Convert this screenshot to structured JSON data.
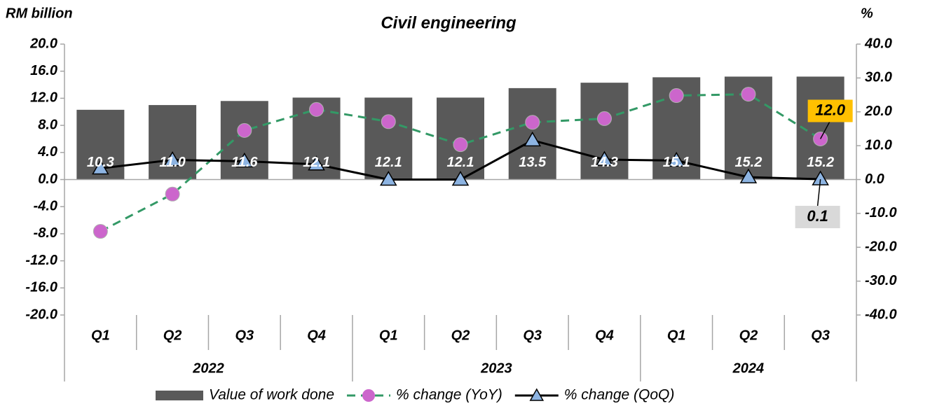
{
  "chart_data": {
    "type": "bar_line",
    "title": "Civil engineering",
    "y_label": "RM billion",
    "y2_label": "%",
    "categories": [
      "Q1",
      "Q2",
      "Q3",
      "Q4",
      "Q1",
      "Q2",
      "Q3",
      "Q4",
      "Q1",
      "Q2",
      "Q3"
    ],
    "years": [
      "2022",
      "2022",
      "2022",
      "2022",
      "2023",
      "2023",
      "2023",
      "2023",
      "2024",
      "2024",
      "2024"
    ],
    "ylim": [
      -20,
      20
    ],
    "yticks": [
      {
        "value": -20,
        "label": "-20.0"
      },
      {
        "value": -16,
        "label": "-16.0"
      },
      {
        "value": -12,
        "label": "-12.0"
      },
      {
        "value": -8,
        "label": "-8.0"
      },
      {
        "value": -4,
        "label": "-4.0"
      },
      {
        "value": 0,
        "label": "0.0"
      },
      {
        "value": 4,
        "label": "4.0"
      },
      {
        "value": 8,
        "label": "8.0"
      },
      {
        "value": 12,
        "label": "12.0"
      },
      {
        "value": 16,
        "label": "16.0"
      },
      {
        "value": 20,
        "label": "20.0"
      }
    ],
    "y2lim": [
      -40,
      40
    ],
    "y2ticks": [
      {
        "value": -40,
        "label": "-40.0"
      },
      {
        "value": -30,
        "label": "-30.0"
      },
      {
        "value": -20,
        "label": "-20.0"
      },
      {
        "value": -10,
        "label": "-10.0"
      },
      {
        "value": 0,
        "label": "0.0"
      },
      {
        "value": 10,
        "label": "10.0"
      },
      {
        "value": 20,
        "label": "20.0"
      },
      {
        "value": 30,
        "label": "30.0"
      },
      {
        "value": 40,
        "label": "40.0"
      }
    ],
    "series": [
      {
        "name": "Value of  work done",
        "type": "bar",
        "color": "#595959",
        "values": [
          10.3,
          11.0,
          11.6,
          12.1,
          12.1,
          12.1,
          13.5,
          14.3,
          15.1,
          15.2,
          15.2
        ],
        "value_labels": [
          "10.3",
          "11.0",
          "11.6",
          "12.1",
          "12.1",
          "12.1",
          "13.5",
          "14.3",
          "15.1",
          "15.2",
          "15.2"
        ]
      },
      {
        "name": "% change (YoY)",
        "type": "line",
        "axis": "y2",
        "color": "#339966",
        "marker_color": "#cc66cc",
        "dashed": true,
        "marker": "circle",
        "values": [
          -15.3,
          -4.3,
          14.5,
          20.7,
          17.1,
          10.3,
          16.9,
          18.0,
          24.8,
          25.2,
          12.0
        ],
        "value_labels": [
          null,
          null,
          null,
          null,
          null,
          null,
          null,
          null,
          null,
          null,
          "12.0"
        ],
        "label_color": "#ffc000"
      },
      {
        "name": "% change (QoQ)",
        "type": "line",
        "axis": "y2",
        "color": "#000000",
        "marker_color": "#8db4e2",
        "dashed": false,
        "marker": "triangle",
        "values": [
          3.3,
          5.8,
          5.4,
          4.5,
          0.0,
          0.0,
          11.6,
          5.9,
          5.6,
          0.7,
          0.1
        ],
        "value_labels": [
          null,
          null,
          null,
          null,
          null,
          null,
          null,
          null,
          null,
          null,
          "0.1"
        ],
        "label_color": "#d9d9d9"
      }
    ]
  }
}
